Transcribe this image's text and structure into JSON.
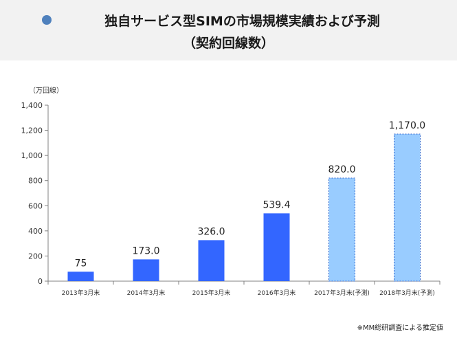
{
  "header": {
    "title_line1": "独自サービス型SIMの市場規模実績および予測",
    "title_line2": "（契約回線数）"
  },
  "chart_data": {
    "type": "bar",
    "unit_label": "（万回線）",
    "categories": [
      "2013年3月末",
      "2014年3月末",
      "2015年3月末",
      "2016年3月末",
      "2017年3月末(予測)",
      "2018年3月末(予測)"
    ],
    "values": [
      75,
      173.0,
      326.0,
      539.4,
      820.0,
      1170.0
    ],
    "value_labels": [
      "75",
      "173.0",
      "326.0",
      "539.4",
      "820.0",
      "1,170.0"
    ],
    "forecast": [
      false,
      false,
      false,
      false,
      true,
      true
    ],
    "ylim": [
      0,
      1400
    ],
    "yticks": [
      0,
      200,
      400,
      600,
      800,
      1000,
      1200,
      1400
    ],
    "ytick_labels": [
      "0",
      "200",
      "400",
      "600",
      "800",
      "1,000",
      "1,200",
      "1,400"
    ],
    "grid": false,
    "colors": {
      "actual": "#3366ff",
      "forecast": "#99ccff",
      "forecast_border": "#3366cc"
    }
  },
  "footnote": "※MM総研調査による推定値"
}
